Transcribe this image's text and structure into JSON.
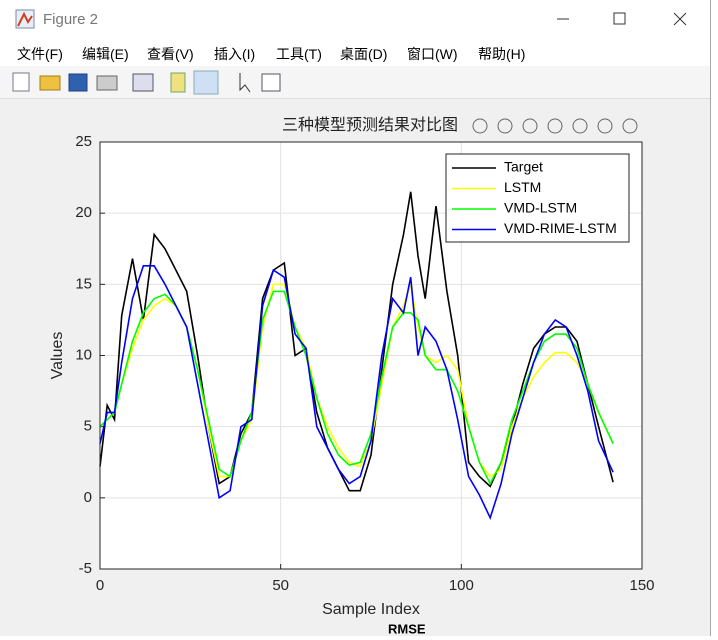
{
  "window": {
    "title": "Figure 2",
    "menu": [
      "文件(F)",
      "编辑(E)",
      "查看(V)",
      "插入(I)",
      "工具(T)",
      "桌面(D)",
      "窗口(W)",
      "帮助(H)"
    ]
  },
  "background_text": "RMSE",
  "chart_data": {
    "type": "line",
    "title": "三种模型预测结果对比图",
    "xlabel": "Sample Index",
    "ylabel": "Values",
    "x": [
      0,
      2,
      4,
      6,
      9,
      12,
      15,
      18,
      21,
      24,
      27,
      30,
      33,
      36,
      39,
      42,
      45,
      48,
      51,
      54,
      57,
      60,
      63,
      66,
      69,
      72,
      75,
      78,
      81,
      84,
      86,
      88,
      90,
      93,
      96,
      99,
      102,
      105,
      108,
      111,
      114,
      117,
      120,
      123,
      126,
      129,
      132,
      135,
      138,
      142
    ],
    "series": [
      {
        "name": "Target",
        "color": "#000000",
        "values": [
          2.2,
          6.5,
          5.5,
          12.8,
          16.8,
          12.5,
          18.5,
          17.5,
          16,
          14.5,
          10,
          5,
          1,
          1.5,
          4.5,
          6,
          14,
          16,
          16.5,
          10,
          10.5,
          6,
          3.5,
          2,
          0.5,
          0.5,
          3,
          9,
          15,
          18.5,
          21.5,
          17,
          14,
          20.5,
          14.5,
          10,
          2.5,
          1.5,
          0.8,
          2.5,
          5,
          8,
          10.5,
          11.5,
          12,
          12,
          11,
          8,
          5,
          1.1
        ]
      },
      {
        "name": "LSTM",
        "color": "#ffff00",
        "values": [
          5,
          5.5,
          6,
          8,
          10.5,
          12.5,
          13.5,
          14,
          13.5,
          12,
          9,
          5,
          1.5,
          1.5,
          4,
          5.5,
          12,
          15,
          15,
          12,
          10.5,
          7,
          5,
          3.5,
          2.5,
          2.2,
          4,
          8,
          12,
          13.5,
          15,
          12,
          10,
          9.5,
          10,
          9,
          5,
          2.5,
          1.5,
          2,
          5,
          7,
          8.5,
          9.5,
          10.2,
          10.2,
          9.5,
          8,
          6,
          3.8
        ]
      },
      {
        "name": "VMD-LSTM",
        "color": "#00ff00",
        "values": [
          5,
          5.5,
          6,
          8,
          11,
          13,
          14,
          14.3,
          13.5,
          12,
          9,
          5.5,
          2,
          1.5,
          4,
          6,
          12.5,
          14.5,
          14.5,
          12,
          10,
          7,
          4.5,
          3,
          2.3,
          2.5,
          4.5,
          8.5,
          12,
          13,
          13,
          12.5,
          10,
          9,
          9,
          7.5,
          5,
          2.5,
          1,
          2.5,
          5.5,
          7.5,
          9.5,
          11,
          11.5,
          11.5,
          10.5,
          8,
          6,
          3.8
        ]
      },
      {
        "name": "VMD-RIME-LSTM",
        "color": "#0000ff",
        "values": [
          3.8,
          6,
          6,
          9.5,
          14,
          16.3,
          16.3,
          15,
          13.5,
          12,
          8,
          4,
          0,
          0.5,
          5,
          5.5,
          13.5,
          16,
          15.5,
          11.5,
          10.5,
          5,
          3.5,
          2,
          1,
          1.5,
          4,
          10,
          14,
          13,
          15.5,
          10,
          12,
          11,
          9,
          5.5,
          1.5,
          0.2,
          -1.4,
          1,
          4.5,
          7,
          9.5,
          11.5,
          12.5,
          12,
          10,
          7.5,
          4,
          1.8
        ]
      }
    ],
    "xlim": [
      0,
      150
    ],
    "xticks": [
      0,
      50,
      100,
      150
    ],
    "ylim": [
      -5,
      25
    ],
    "yticks": [
      -5,
      0,
      5,
      10,
      15,
      20,
      25
    ],
    "grid": true,
    "legend": "northeast"
  }
}
